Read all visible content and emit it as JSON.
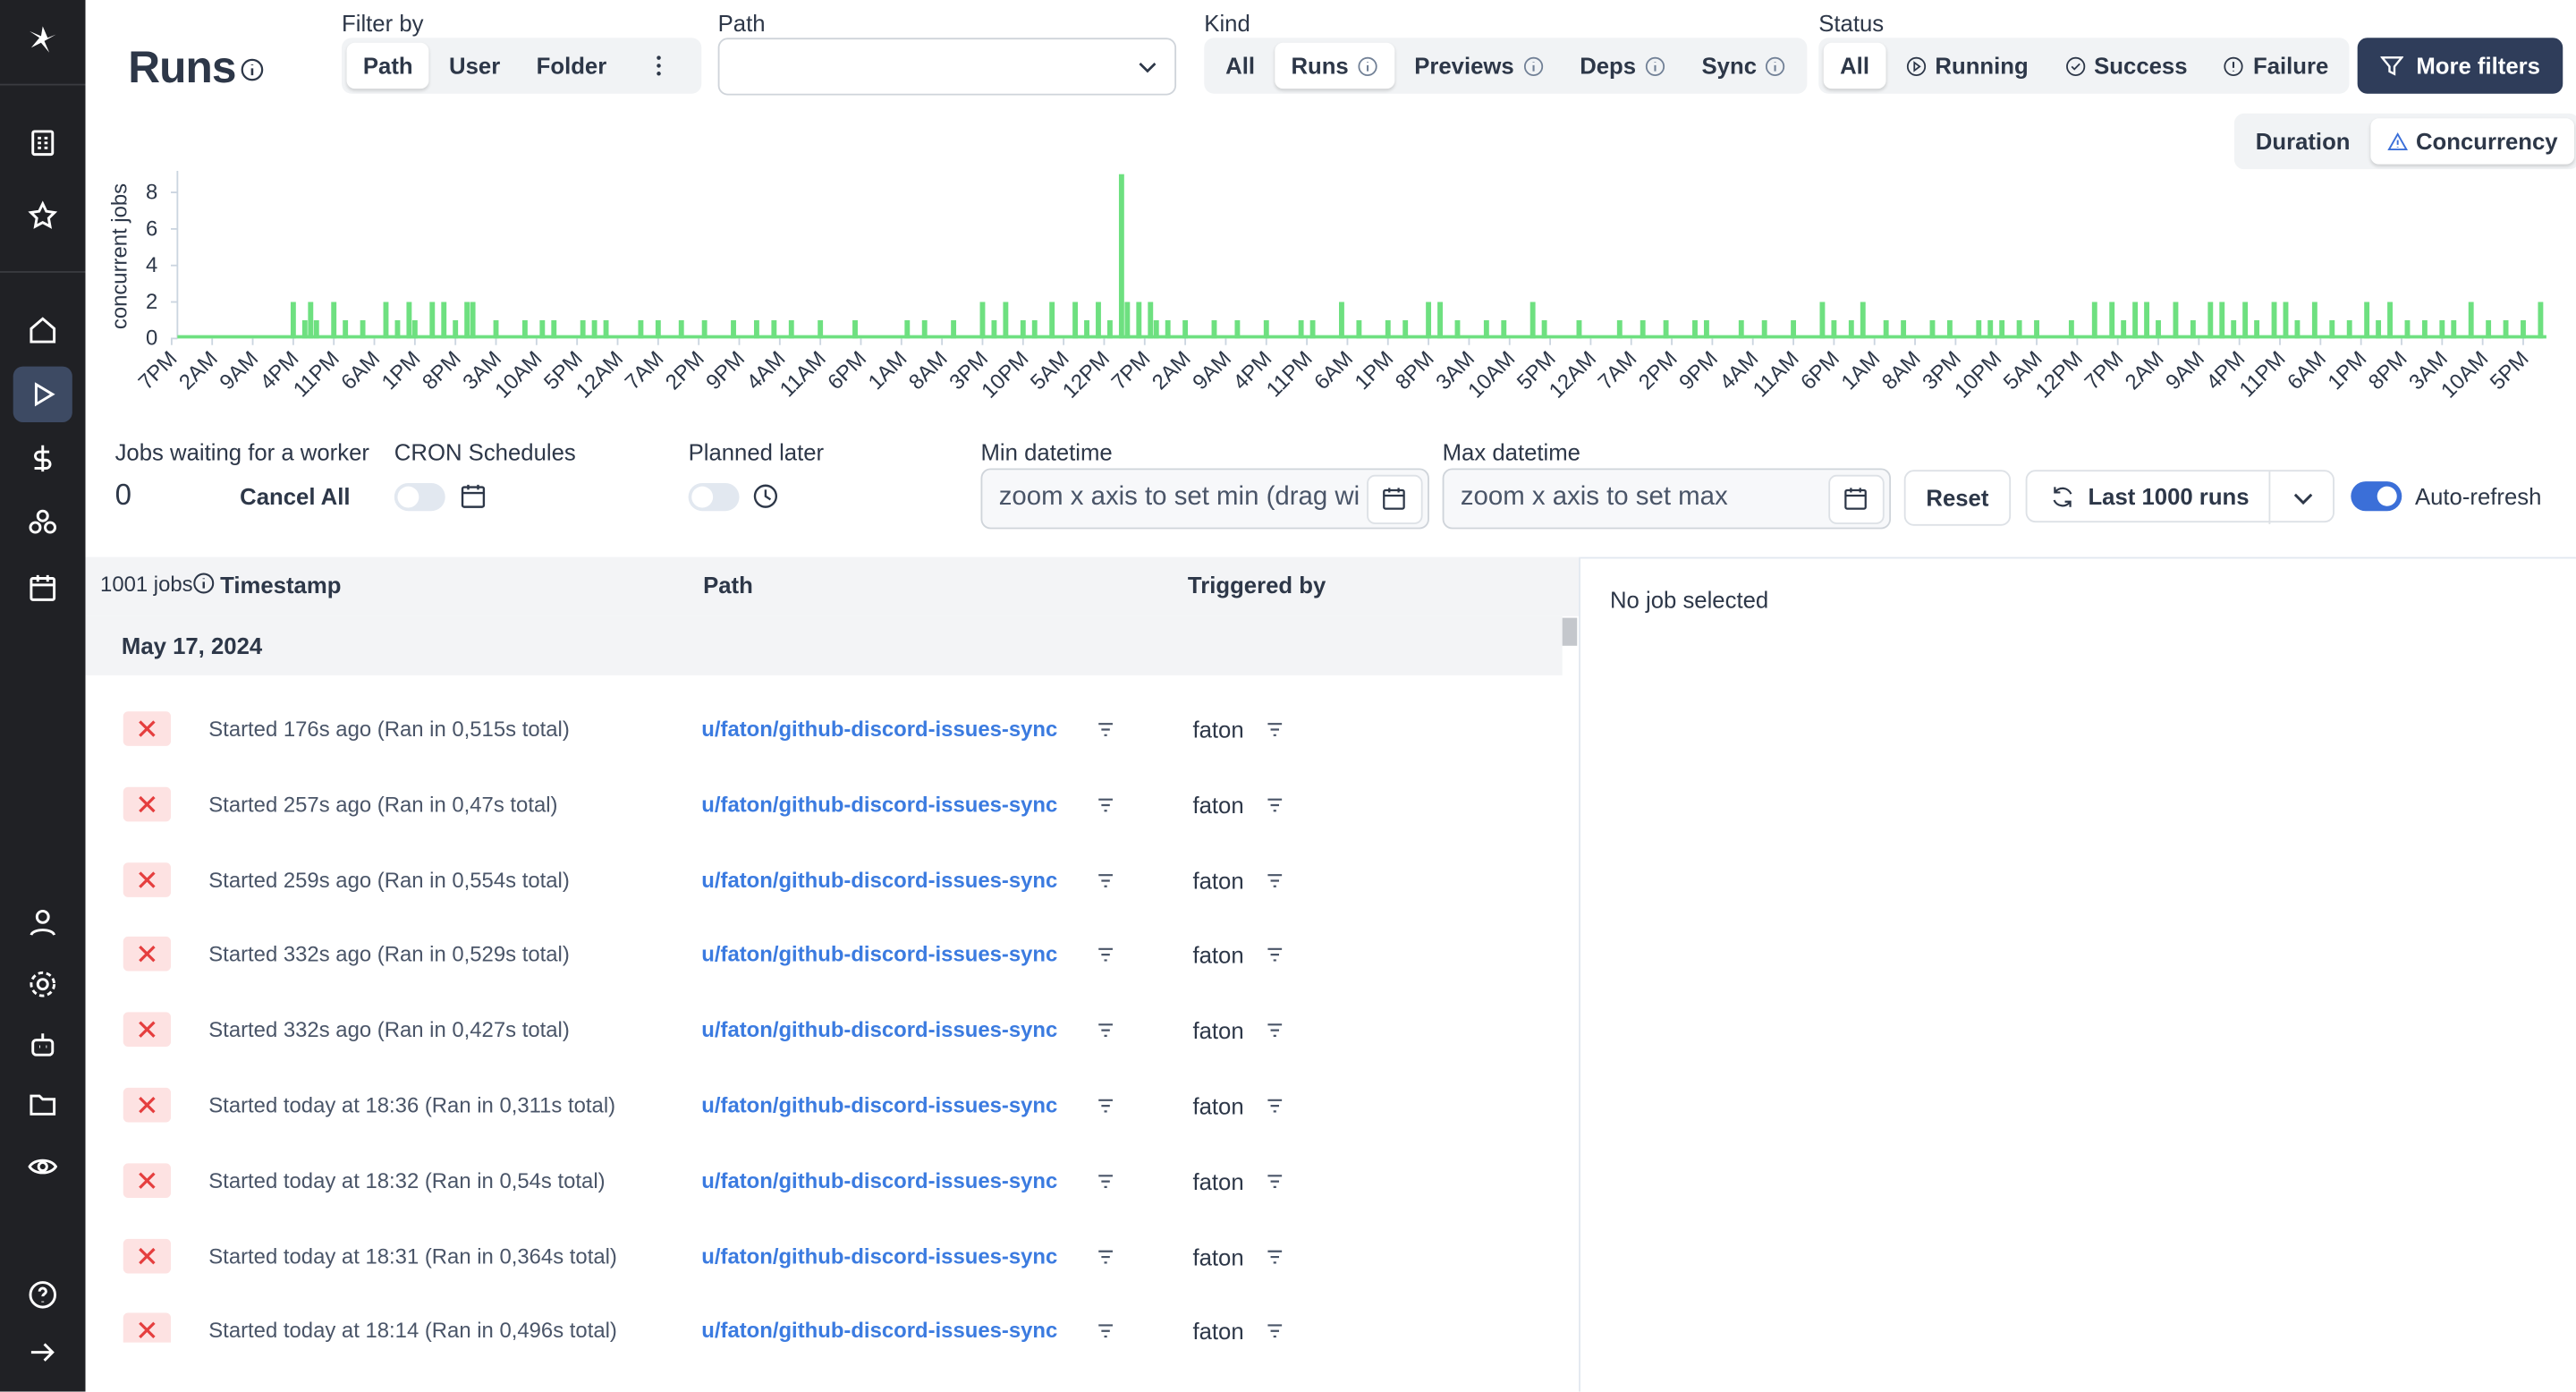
{
  "header": {
    "title": "Runs"
  },
  "filters": {
    "filter_by": {
      "label": "Filter by",
      "options": [
        "Path",
        "User",
        "Folder"
      ]
    },
    "path": {
      "label": "Path"
    },
    "kind": {
      "label": "Kind",
      "options": [
        "All",
        "Runs",
        "Previews",
        "Deps",
        "Sync"
      ]
    },
    "status": {
      "label": "Status",
      "options": [
        "All",
        "Running",
        "Success",
        "Failure"
      ]
    },
    "more_filters": "More filters"
  },
  "chart_tabs": [
    "Duration",
    "Concurrency"
  ],
  "chart_data": {
    "type": "bar",
    "y_label": "concurrent jobs",
    "color": "#6ee080",
    "x": [
      21,
      23,
      24,
      25,
      28,
      30,
      33,
      37,
      39,
      41,
      42,
      45,
      47,
      49,
      51,
      52,
      56,
      61,
      64,
      66,
      71,
      73,
      75,
      81,
      84,
      88,
      92,
      97,
      101,
      104,
      107,
      112,
      118,
      127,
      130,
      135,
      140,
      142,
      144,
      147,
      149,
      152,
      156,
      158,
      160,
      162,
      164,
      165,
      167,
      169,
      170,
      172,
      175,
      180,
      184,
      189,
      195,
      197,
      202,
      205,
      210,
      213,
      217,
      219,
      222,
      227,
      230,
      235,
      237,
      243,
      250,
      254,
      258,
      263,
      265,
      271,
      275,
      280,
      285,
      287,
      290,
      292,
      296,
      299,
      304,
      307,
      312,
      314,
      316,
      319,
      322,
      328,
      332,
      335,
      337,
      339,
      341,
      343,
      346,
      349,
      352,
      354,
      356,
      358,
      360,
      363,
      365,
      367,
      370,
      373,
      376,
      379,
      381,
      383,
      386,
      389,
      392,
      394,
      397,
      400,
      403,
      406,
      409
    ],
    "values": [
      2,
      1,
      2,
      1,
      2,
      1,
      1,
      2,
      1,
      2,
      1,
      2,
      2,
      1,
      2,
      2,
      1,
      1,
      1,
      1,
      1,
      1,
      1,
      1,
      1,
      1,
      1,
      1,
      1,
      1,
      1,
      1,
      1,
      1,
      1,
      1,
      2,
      1,
      2,
      1,
      1,
      2,
      2,
      1,
      2,
      1,
      9,
      2,
      2,
      2,
      1,
      1,
      1,
      1,
      1,
      1,
      1,
      1,
      2,
      1,
      1,
      1,
      2,
      2,
      1,
      1,
      1,
      2,
      1,
      1,
      1,
      1,
      1,
      1,
      1,
      1,
      1,
      1,
      2,
      1,
      1,
      2,
      1,
      1,
      1,
      1,
      1,
      1,
      1,
      1,
      1,
      1,
      2,
      2,
      1,
      2,
      2,
      1,
      2,
      1,
      2,
      2,
      1,
      2,
      1,
      2,
      2,
      1,
      2,
      1,
      1,
      2,
      1,
      2,
      1,
      1,
      1,
      1,
      2,
      1,
      1,
      1,
      2
    ],
    "xlim": [
      1,
      410
    ],
    "ylim": [
      0,
      9
    ],
    "yticks": [
      0,
      2,
      4,
      6,
      8
    ],
    "xticks": [
      {
        "value": 0,
        "label": "7PM"
      },
      {
        "value": 7,
        "label": "2AM"
      },
      {
        "value": 14,
        "label": "9AM"
      },
      {
        "value": 21,
        "label": "4PM"
      },
      {
        "value": 28,
        "label": "11PM"
      },
      {
        "value": 35,
        "label": "6AM"
      },
      {
        "value": 42,
        "label": "1PM"
      },
      {
        "value": 49,
        "label": "8PM"
      },
      {
        "value": 56,
        "label": "3AM"
      },
      {
        "value": 63,
        "label": "10AM"
      },
      {
        "value": 70,
        "label": "5PM"
      },
      {
        "value": 77,
        "label": "12AM"
      },
      {
        "value": 84,
        "label": "7AM"
      },
      {
        "value": 91,
        "label": "2PM"
      },
      {
        "value": 98,
        "label": "9PM"
      },
      {
        "value": 105,
        "label": "4AM"
      },
      {
        "value": 112,
        "label": "11AM"
      },
      {
        "value": 119,
        "label": "6PM"
      },
      {
        "value": 126,
        "label": "1AM"
      },
      {
        "value": 133,
        "label": "8AM"
      },
      {
        "value": 140,
        "label": "3PM"
      },
      {
        "value": 147,
        "label": "10PM"
      },
      {
        "value": 154,
        "label": "5AM"
      },
      {
        "value": 161,
        "label": "12PM"
      },
      {
        "value": 168,
        "label": "7PM"
      },
      {
        "value": 175,
        "label": "2AM"
      },
      {
        "value": 182,
        "label": "9AM"
      },
      {
        "value": 189,
        "label": "4PM"
      },
      {
        "value": 196,
        "label": "11PM"
      },
      {
        "value": 203,
        "label": "6AM"
      },
      {
        "value": 210,
        "label": "1PM"
      },
      {
        "value": 217,
        "label": "8PM"
      },
      {
        "value": 224,
        "label": "3AM"
      },
      {
        "value": 231,
        "label": "10AM"
      },
      {
        "value": 238,
        "label": "5PM"
      },
      {
        "value": 245,
        "label": "12AM"
      },
      {
        "value": 252,
        "label": "7AM"
      },
      {
        "value": 259,
        "label": "2PM"
      },
      {
        "value": 266,
        "label": "9PM"
      },
      {
        "value": 273,
        "label": "4AM"
      },
      {
        "value": 280,
        "label": "11AM"
      },
      {
        "value": 287,
        "label": "6PM"
      },
      {
        "value": 294,
        "label": "1AM"
      },
      {
        "value": 301,
        "label": "8AM"
      },
      {
        "value": 308,
        "label": "3PM"
      },
      {
        "value": 315,
        "label": "10PM"
      },
      {
        "value": 322,
        "label": "5AM"
      },
      {
        "value": 329,
        "label": "12PM"
      },
      {
        "value": 336,
        "label": "7PM"
      },
      {
        "value": 343,
        "label": "2AM"
      },
      {
        "value": 350,
        "label": "9AM"
      },
      {
        "value": 357,
        "label": "4PM"
      },
      {
        "value": 364,
        "label": "11PM"
      },
      {
        "value": 371,
        "label": "6AM"
      },
      {
        "value": 378,
        "label": "1PM"
      },
      {
        "value": 385,
        "label": "8PM"
      },
      {
        "value": 392,
        "label": "3AM"
      },
      {
        "value": 399,
        "label": "10AM"
      },
      {
        "value": 406,
        "label": "5PM"
      }
    ]
  },
  "controls": {
    "jobs_waiting": {
      "label": "Jobs waiting for a worker",
      "value": 0
    },
    "cancel_all": "Cancel All",
    "cron": "CRON Schedules",
    "planned": "Planned later",
    "min": {
      "label": "Min datetime",
      "placeholder": "zoom x axis to set min (drag wi"
    },
    "max": {
      "label": "Max datetime",
      "placeholder": "zoom x axis to set max"
    },
    "reset": "Reset",
    "last_runs": "Last 1000 runs",
    "auto_refresh": "Auto-refresh"
  },
  "table": {
    "count": "1001 jobs",
    "columns": [
      "Timestamp",
      "Path",
      "Triggered by"
    ],
    "group": "May 17, 2024",
    "rows": [
      {
        "started": "Started 176s ago (Ran in 0,515s total)",
        "path": "u/faton/github-discord-issues-sync",
        "by": "faton"
      },
      {
        "started": "Started 257s ago (Ran in 0,47s total)",
        "path": "u/faton/github-discord-issues-sync",
        "by": "faton"
      },
      {
        "started": "Started 259s ago (Ran in 0,554s total)",
        "path": "u/faton/github-discord-issues-sync",
        "by": "faton"
      },
      {
        "started": "Started 332s ago (Ran in 0,529s total)",
        "path": "u/faton/github-discord-issues-sync",
        "by": "faton"
      },
      {
        "started": "Started 332s ago (Ran in 0,427s total)",
        "path": "u/faton/github-discord-issues-sync",
        "by": "faton"
      },
      {
        "started": "Started today at 18:36 (Ran in 0,311s total)",
        "path": "u/faton/github-discord-issues-sync",
        "by": "faton"
      },
      {
        "started": "Started today at 18:32 (Ran in 0,54s total)",
        "path": "u/faton/github-discord-issues-sync",
        "by": "faton"
      },
      {
        "started": "Started today at 18:31 (Ran in 0,364s total)",
        "path": "u/faton/github-discord-issues-sync",
        "by": "faton"
      },
      {
        "started": "Started today at 18:14 (Ran in 0,496s total)",
        "path": "u/faton/github-discord-issues-sync",
        "by": "faton"
      }
    ]
  },
  "detail": "No job selected"
}
